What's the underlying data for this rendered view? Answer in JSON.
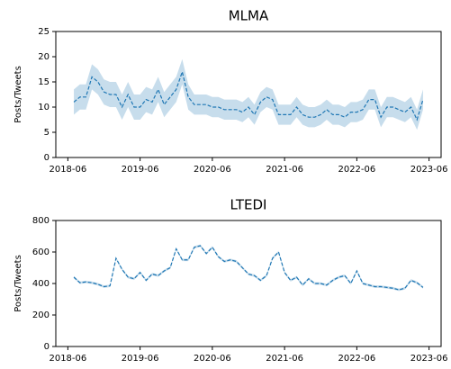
{
  "chart_data": [
    {
      "type": "line",
      "title": "MLMA",
      "ylabel": "Posts/Tweets",
      "x": [
        "2018-07",
        "2018-08",
        "2018-09",
        "2018-10",
        "2018-11",
        "2018-12",
        "2019-01",
        "2019-02",
        "2019-03",
        "2019-04",
        "2019-05",
        "2019-06",
        "2019-07",
        "2019-08",
        "2019-09",
        "2019-10",
        "2019-11",
        "2019-12",
        "2020-01",
        "2020-02",
        "2020-03",
        "2020-04",
        "2020-05",
        "2020-06",
        "2020-07",
        "2020-08",
        "2020-09",
        "2020-10",
        "2020-11",
        "2020-12",
        "2021-01",
        "2021-02",
        "2021-03",
        "2021-04",
        "2021-05",
        "2021-06",
        "2021-07",
        "2021-08",
        "2021-09",
        "2021-10",
        "2021-11",
        "2021-12",
        "2022-01",
        "2022-02",
        "2022-03",
        "2022-04",
        "2022-05",
        "2022-06",
        "2022-07",
        "2022-08",
        "2022-09",
        "2022-10",
        "2022-11",
        "2022-12",
        "2023-01",
        "2023-02",
        "2023-03",
        "2023-04",
        "2023-05"
      ],
      "series": [
        {
          "color": "#1f77b4",
          "values": [
            11,
            12,
            12,
            16,
            15,
            13,
            12.5,
            12.5,
            10,
            12.5,
            10,
            10,
            11.5,
            11,
            13.5,
            10.5,
            12,
            13.5,
            17,
            12,
            10.5,
            10.5,
            10.5,
            10,
            10,
            9.5,
            9.5,
            9.5,
            9,
            10,
            8.5,
            11,
            12,
            11.5,
            8.5,
            8.5,
            8.5,
            10,
            8.5,
            8,
            8,
            8.5,
            9.5,
            8.5,
            8.5,
            8,
            9,
            9,
            9.5,
            11.5,
            11.5,
            8,
            10,
            10,
            9.5,
            9,
            10,
            7.5,
            11.5
          ],
          "ci": [
            2.5,
            2.5,
            2.5,
            2.5,
            2.5,
            2.5,
            2.5,
            2.5,
            2.5,
            2.5,
            2.5,
            2.5,
            2.5,
            2.5,
            2.5,
            2.5,
            2.5,
            2.5,
            2.5,
            2.5,
            2,
            2,
            2,
            2,
            2,
            2,
            2,
            2,
            2,
            2,
            2,
            2,
            2,
            2,
            2,
            2,
            2,
            2,
            2,
            2,
            2,
            2,
            2,
            2,
            2,
            2,
            2,
            2,
            2,
            2,
            2,
            2,
            2,
            2,
            2,
            2,
            2,
            2,
            2
          ]
        }
      ],
      "xlim": [
        "2018-04",
        "2023-08"
      ],
      "xticks": [
        "2018-06",
        "2019-06",
        "2020-06",
        "2021-06",
        "2022-06",
        "2023-06"
      ],
      "ylim": [
        0,
        25
      ],
      "yticks": [
        0,
        5,
        10,
        15,
        20,
        25
      ]
    },
    {
      "type": "line",
      "title": "LTEDI",
      "ylabel": "Posts/Tweets",
      "x": [
        "2018-07",
        "2018-08",
        "2018-09",
        "2018-10",
        "2018-11",
        "2018-12",
        "2019-01",
        "2019-02",
        "2019-03",
        "2019-04",
        "2019-05",
        "2019-06",
        "2019-07",
        "2019-08",
        "2019-09",
        "2019-10",
        "2019-11",
        "2019-12",
        "2020-01",
        "2020-02",
        "2020-03",
        "2020-04",
        "2020-05",
        "2020-06",
        "2020-07",
        "2020-08",
        "2020-09",
        "2020-10",
        "2020-11",
        "2020-12",
        "2021-01",
        "2021-02",
        "2021-03",
        "2021-04",
        "2021-05",
        "2021-06",
        "2021-07",
        "2021-08",
        "2021-09",
        "2021-10",
        "2021-11",
        "2021-12",
        "2022-01",
        "2022-02",
        "2022-03",
        "2022-04",
        "2022-05",
        "2022-06",
        "2022-07",
        "2022-08",
        "2022-09",
        "2022-10",
        "2022-11",
        "2022-12",
        "2023-01",
        "2023-02",
        "2023-03",
        "2023-04",
        "2023-05"
      ],
      "series": [
        {
          "color": "#1f77b4",
          "values": [
            440,
            405,
            410,
            405,
            395,
            380,
            385,
            560,
            490,
            440,
            430,
            470,
            420,
            460,
            450,
            480,
            500,
            620,
            550,
            550,
            630,
            640,
            590,
            630,
            570,
            540,
            550,
            540,
            500,
            460,
            450,
            420,
            450,
            560,
            600,
            470,
            420,
            440,
            390,
            430,
            400,
            400,
            390,
            420,
            440,
            450,
            400,
            480,
            400,
            390,
            380,
            380,
            375,
            370,
            360,
            370,
            420,
            405,
            375
          ],
          "ci": [
            8,
            8,
            8,
            8,
            8,
            8,
            8,
            8,
            8,
            8,
            8,
            8,
            8,
            8,
            8,
            8,
            8,
            8,
            8,
            8,
            8,
            8,
            8,
            8,
            8,
            8,
            8,
            8,
            8,
            8,
            8,
            8,
            8,
            8,
            8,
            8,
            8,
            8,
            8,
            8,
            8,
            8,
            8,
            8,
            8,
            8,
            8,
            8,
            8,
            8,
            8,
            8,
            8,
            8,
            8,
            8,
            8,
            8,
            8
          ]
        }
      ],
      "xlim": [
        "2018-04",
        "2023-08"
      ],
      "xticks": [
        "2018-06",
        "2019-06",
        "2020-06",
        "2021-06",
        "2022-06",
        "2023-06"
      ],
      "ylim": [
        0,
        800
      ],
      "yticks": [
        0,
        200,
        400,
        600,
        800
      ]
    }
  ]
}
